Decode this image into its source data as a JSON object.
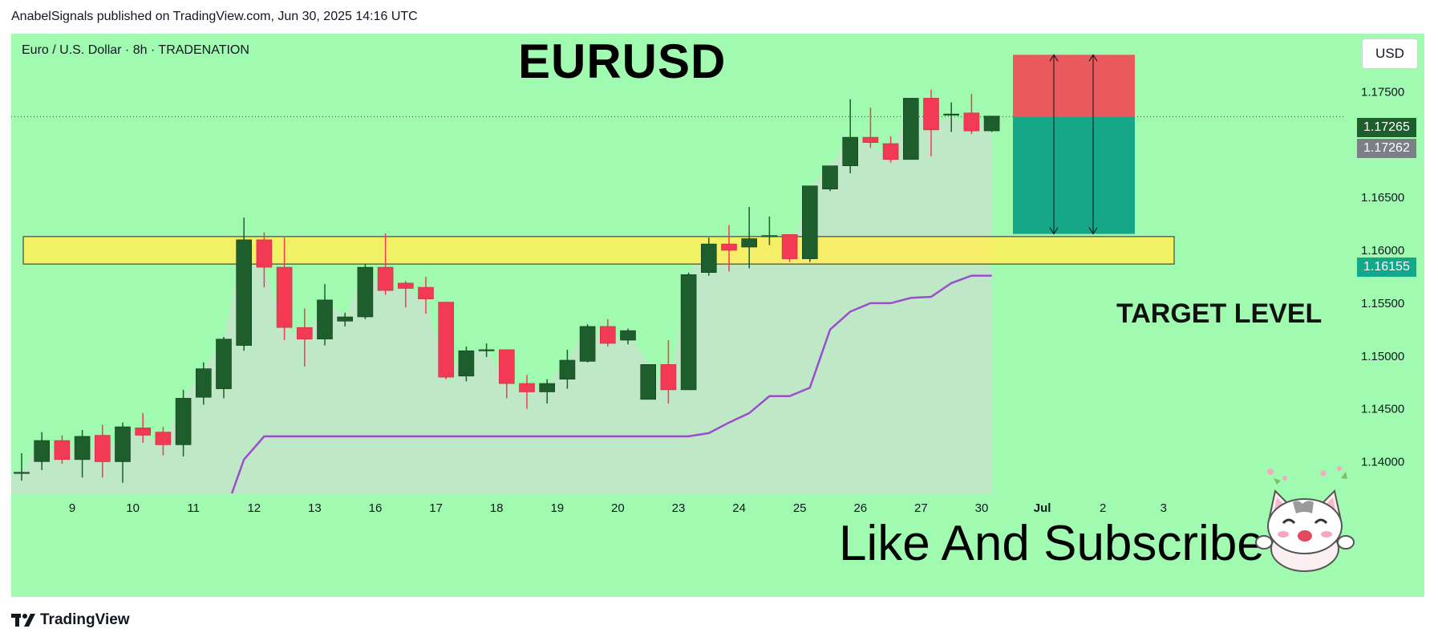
{
  "header": {
    "publish_line": "AnabelSignals published on TradingView.com, Jun 30, 2025 14:16 UTC"
  },
  "symbol_line": "Euro / U.S. Dollar · 8h · TRADENATION",
  "title": "EURUSD",
  "target_label": "TARGET LEVEL",
  "cta_text": "Like And Subscribe",
  "currency_button": "USD",
  "price_badges": {
    "last": "1.17265",
    "previous": "1.17262",
    "target": "1.16155"
  },
  "footer": {
    "brand": "TradingView"
  },
  "colors": {
    "background": "#a0fbb0",
    "bull_candle": "#1e5e2d",
    "bear_candle": "#f23a55",
    "zone": "#ffee58",
    "trend_line": "#9c4dcc",
    "stop_box": "#e85a5e",
    "target_box": "#16a788"
  },
  "chart_data": {
    "type": "candlestick",
    "symbol": "EURUSD",
    "timeframe": "8h",
    "x_tick_labels": [
      "9",
      "10",
      "11",
      "12",
      "13",
      "16",
      "17",
      "18",
      "19",
      "20",
      "23",
      "24",
      "25",
      "26",
      "27",
      "30",
      "Jul",
      "2",
      "3"
    ],
    "y_tick_labels": [
      "1.17500",
      "1.17000",
      "1.16500",
      "1.16000",
      "1.15500",
      "1.15000",
      "1.14500",
      "1.14000"
    ],
    "ylim": [
      1.137,
      1.1805
    ],
    "candles": [
      {
        "o": 1.139,
        "h": 1.1408,
        "l": 1.1382,
        "c": 1.139
      },
      {
        "o": 1.14,
        "h": 1.1428,
        "l": 1.1392,
        "c": 1.142
      },
      {
        "o": 1.142,
        "h": 1.1425,
        "l": 1.1398,
        "c": 1.1402
      },
      {
        "o": 1.1402,
        "h": 1.143,
        "l": 1.1385,
        "c": 1.1424
      },
      {
        "o": 1.1425,
        "h": 1.1435,
        "l": 1.1385,
        "c": 1.14
      },
      {
        "o": 1.14,
        "h": 1.1437,
        "l": 1.138,
        "c": 1.1433
      },
      {
        "o": 1.1432,
        "h": 1.1446,
        "l": 1.1418,
        "c": 1.1425
      },
      {
        "o": 1.1428,
        "h": 1.1433,
        "l": 1.1406,
        "c": 1.1416
      },
      {
        "o": 1.1416,
        "h": 1.1468,
        "l": 1.1405,
        "c": 1.146
      },
      {
        "o": 1.1461,
        "h": 1.1494,
        "l": 1.1454,
        "c": 1.1488
      },
      {
        "o": 1.1469,
        "h": 1.1518,
        "l": 1.146,
        "c": 1.1516
      },
      {
        "o": 1.151,
        "h": 1.1631,
        "l": 1.1505,
        "c": 1.161
      },
      {
        "o": 1.161,
        "h": 1.1617,
        "l": 1.1565,
        "c": 1.1584
      },
      {
        "o": 1.1584,
        "h": 1.1612,
        "l": 1.1515,
        "c": 1.1527
      },
      {
        "o": 1.1527,
        "h": 1.1545,
        "l": 1.149,
        "c": 1.1516
      },
      {
        "o": 1.1516,
        "h": 1.1568,
        "l": 1.151,
        "c": 1.1553
      },
      {
        "o": 1.1533,
        "h": 1.1541,
        "l": 1.1528,
        "c": 1.1537
      },
      {
        "o": 1.1537,
        "h": 1.1587,
        "l": 1.1535,
        "c": 1.1584
      },
      {
        "o": 1.1584,
        "h": 1.1616,
        "l": 1.1558,
        "c": 1.1562
      },
      {
        "o": 1.1569,
        "h": 1.1571,
        "l": 1.1546,
        "c": 1.1564
      },
      {
        "o": 1.1565,
        "h": 1.1575,
        "l": 1.154,
        "c": 1.1554
      },
      {
        "o": 1.1551,
        "h": 1.1551,
        "l": 1.1478,
        "c": 1.148
      },
      {
        "o": 1.1481,
        "h": 1.1509,
        "l": 1.1476,
        "c": 1.1505
      },
      {
        "o": 1.1506,
        "h": 1.1512,
        "l": 1.1499,
        "c": 1.1506
      },
      {
        "o": 1.1506,
        "h": 1.1506,
        "l": 1.146,
        "c": 1.1474
      },
      {
        "o": 1.1474,
        "h": 1.1482,
        "l": 1.145,
        "c": 1.1466
      },
      {
        "o": 1.1466,
        "h": 1.1478,
        "l": 1.1455,
        "c": 1.1474
      },
      {
        "o": 1.1478,
        "h": 1.1506,
        "l": 1.1469,
        "c": 1.1496
      },
      {
        "o": 1.1495,
        "h": 1.153,
        "l": 1.1494,
        "c": 1.1528
      },
      {
        "o": 1.1528,
        "h": 1.1535,
        "l": 1.1509,
        "c": 1.1512
      },
      {
        "o": 1.1515,
        "h": 1.1526,
        "l": 1.1511,
        "c": 1.1524
      },
      {
        "o": 1.1459,
        "h": 1.1492,
        "l": 1.1459,
        "c": 1.1492
      },
      {
        "o": 1.1492,
        "h": 1.1515,
        "l": 1.1455,
        "c": 1.1468
      },
      {
        "o": 1.1468,
        "h": 1.1579,
        "l": 1.1468,
        "c": 1.1577
      },
      {
        "o": 1.1579,
        "h": 1.1612,
        "l": 1.1576,
        "c": 1.1606
      },
      {
        "o": 1.1606,
        "h": 1.1624,
        "l": 1.158,
        "c": 1.16
      },
      {
        "o": 1.1603,
        "h": 1.1641,
        "l": 1.1583,
        "c": 1.1611
      },
      {
        "o": 1.1613,
        "h": 1.1632,
        "l": 1.1605,
        "c": 1.1614
      },
      {
        "o": 1.1615,
        "h": 1.1615,
        "l": 1.1589,
        "c": 1.1592
      },
      {
        "o": 1.1592,
        "h": 1.1661,
        "l": 1.1589,
        "c": 1.1661
      },
      {
        "o": 1.1658,
        "h": 1.168,
        "l": 1.1656,
        "c": 1.168
      },
      {
        "o": 1.168,
        "h": 1.1743,
        "l": 1.1673,
        "c": 1.1707
      },
      {
        "o": 1.1707,
        "h": 1.1735,
        "l": 1.1697,
        "c": 1.1702
      },
      {
        "o": 1.1701,
        "h": 1.1708,
        "l": 1.1683,
        "c": 1.1686
      },
      {
        "o": 1.1686,
        "h": 1.1744,
        "l": 1.1686,
        "c": 1.1744
      },
      {
        "o": 1.1744,
        "h": 1.1752,
        "l": 1.1689,
        "c": 1.1714
      },
      {
        "o": 1.1729,
        "h": 1.174,
        "l": 1.1712,
        "c": 1.1729
      },
      {
        "o": 1.173,
        "h": 1.1748,
        "l": 1.171,
        "c": 1.1713
      },
      {
        "o": 1.1713,
        "h": 1.1727,
        "l": 1.1712,
        "c": 1.1727
      }
    ],
    "support_zone": {
      "top": 1.1613,
      "bottom": 1.1587
    },
    "trend_line": [
      {
        "i": 10.4,
        "v": 1.137
      },
      {
        "i": 11,
        "v": 1.1402
      },
      {
        "i": 12,
        "v": 1.1424
      },
      {
        "i": 33,
        "v": 1.1424
      },
      {
        "i": 34,
        "v": 1.1427
      },
      {
        "i": 35,
        "v": 1.1437
      },
      {
        "i": 36,
        "v": 1.1446
      },
      {
        "i": 37,
        "v": 1.1462
      },
      {
        "i": 38,
        "v": 1.1462
      },
      {
        "i": 39,
        "v": 1.147
      },
      {
        "i": 40,
        "v": 1.1525
      },
      {
        "i": 41,
        "v": 1.1542
      },
      {
        "i": 42,
        "v": 1.155
      },
      {
        "i": 43,
        "v": 1.155
      },
      {
        "i": 44,
        "v": 1.1555
      },
      {
        "i": 45,
        "v": 1.1556
      },
      {
        "i": 46,
        "v": 1.1569
      },
      {
        "i": 47,
        "v": 1.1576
      },
      {
        "i": 48,
        "v": 1.1576
      }
    ],
    "position": {
      "entry": 1.17265,
      "stop": 1.1785,
      "target": 1.16155
    }
  }
}
